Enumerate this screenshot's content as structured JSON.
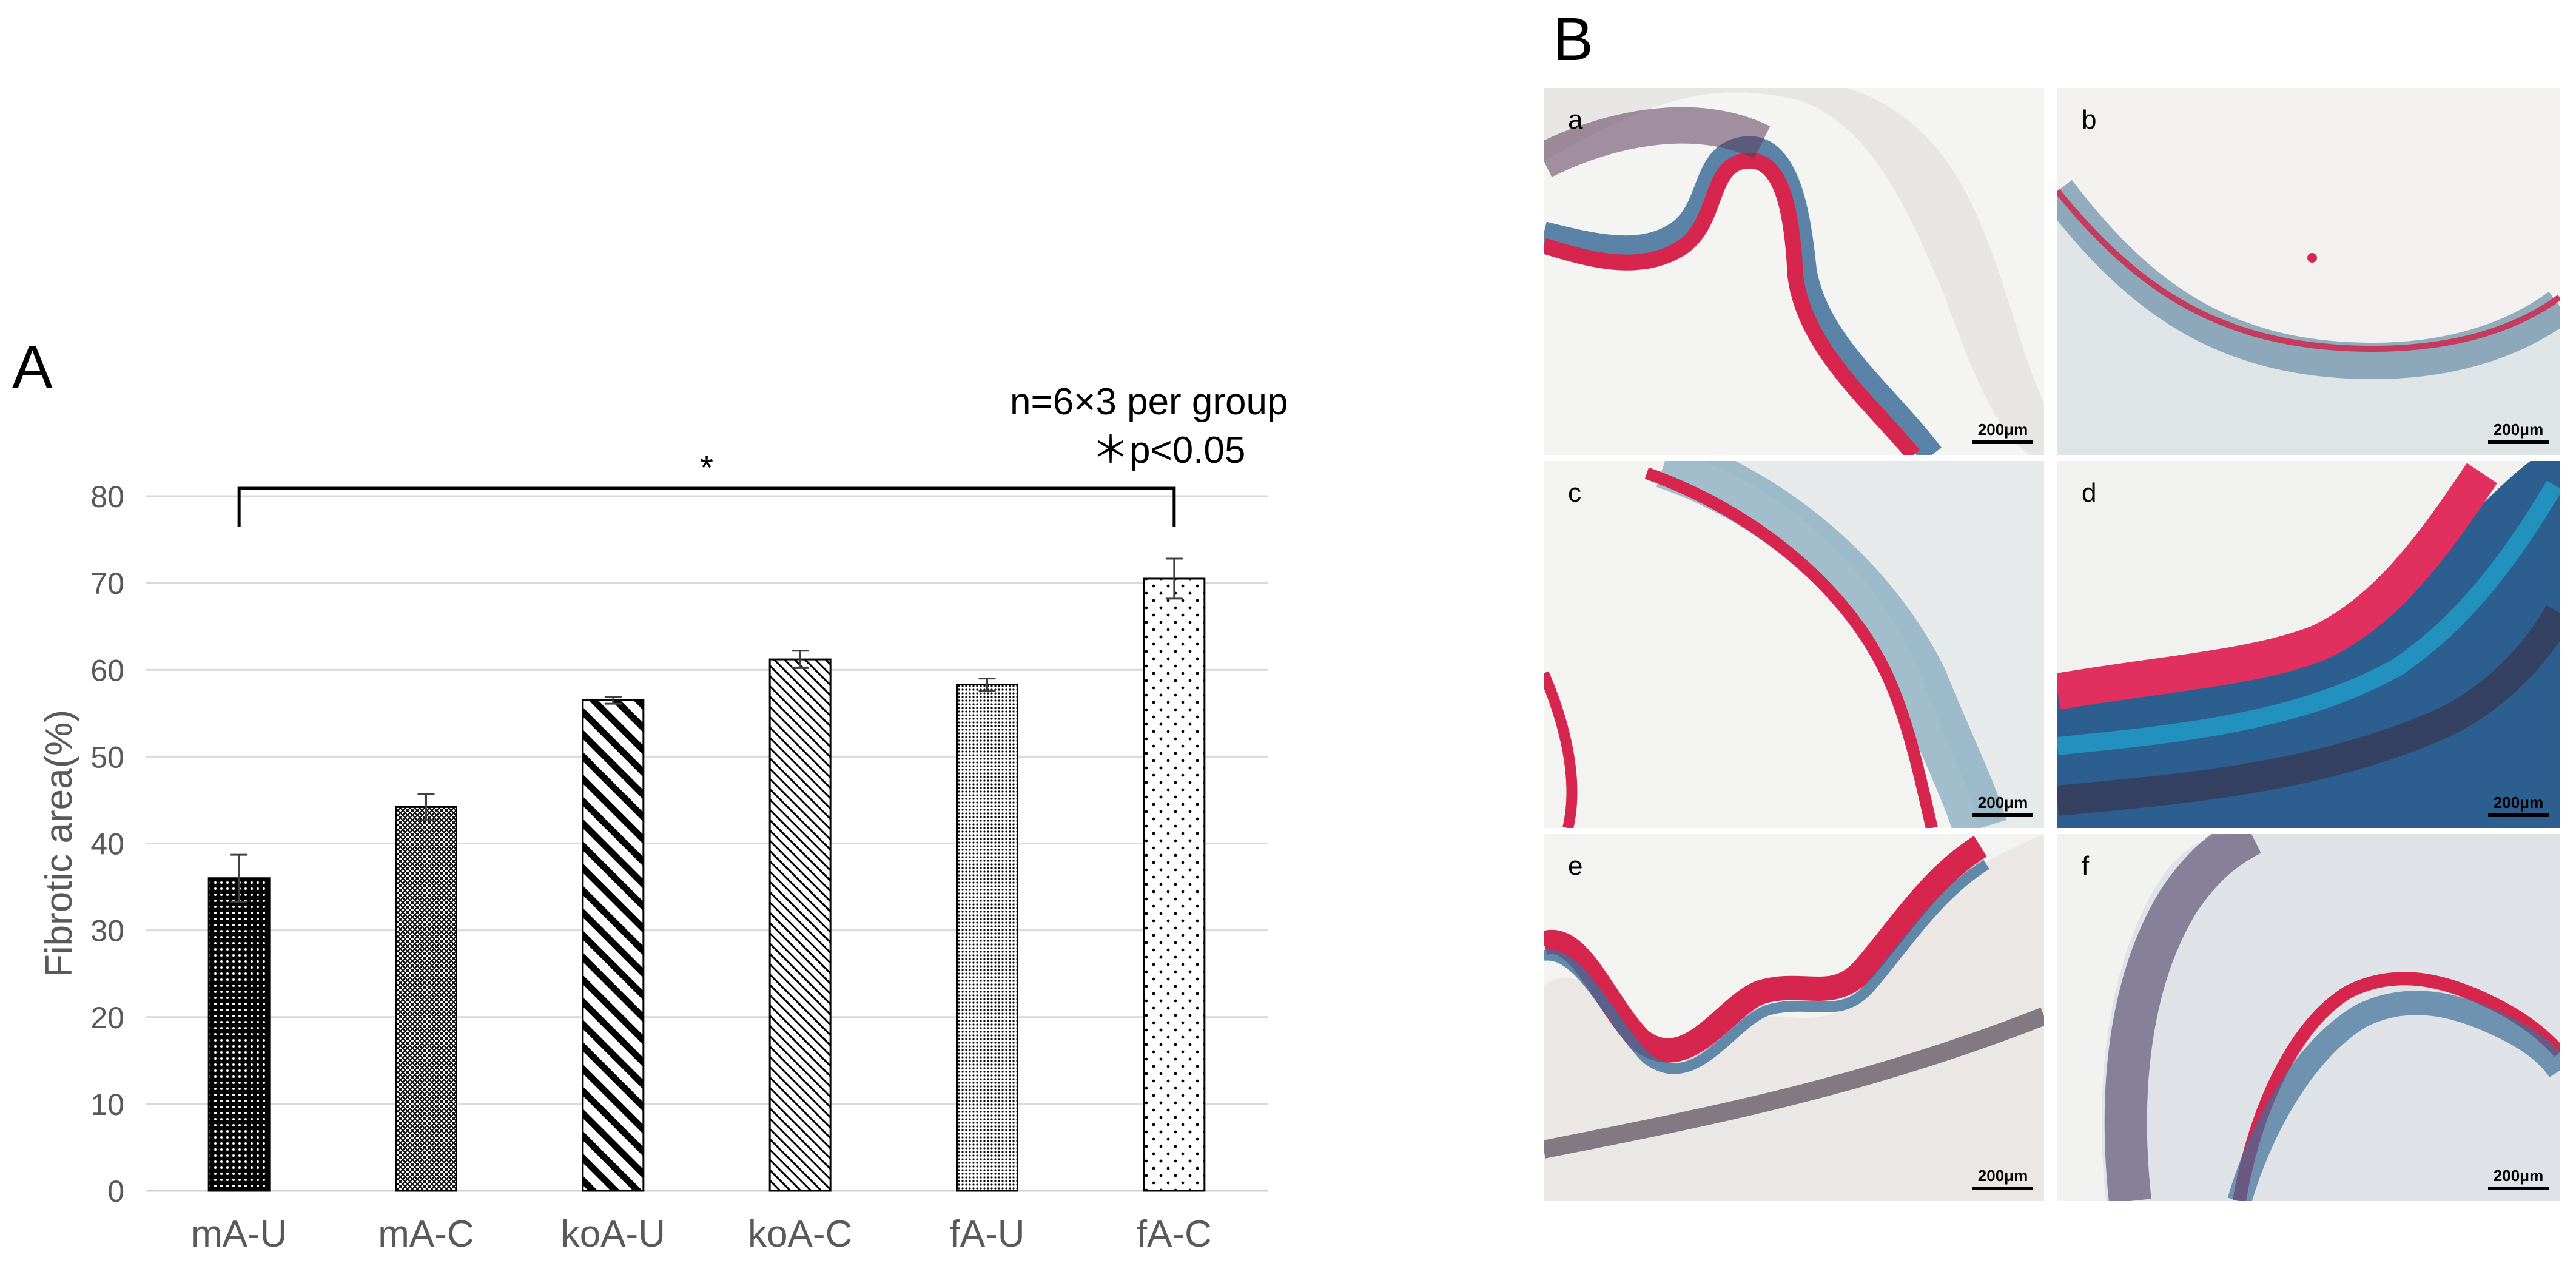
{
  "panels": {
    "a_label": "A",
    "b_label": "B"
  },
  "chart_data": {
    "type": "bar",
    "categories": [
      "mA-U",
      "mA-C",
      "koA-U",
      "koA-C",
      "fA-U",
      "fA-C"
    ],
    "values": [
      36,
      44.2,
      56.5,
      61.2,
      58.3,
      70.5
    ],
    "errors": [
      2.7,
      1.5,
      0.4,
      1.0,
      0.7,
      2.3
    ],
    "patterns": [
      "dense-dots",
      "crosshatch",
      "wide-diagonal",
      "fine-diagonal",
      "fine-dots",
      "sparse-dots"
    ],
    "xlabel": "",
    "ylabel": "Fibrotic area(%)",
    "ylim": [
      0,
      80
    ],
    "yticks": [
      0,
      10,
      20,
      30,
      40,
      50,
      60,
      70,
      80
    ],
    "grid": true,
    "significance": {
      "from": "mA-U",
      "to": "fA-C",
      "label": "*"
    },
    "annotations": [
      "n=6×3 per group",
      "＊p<0.05"
    ]
  },
  "micrographs": [
    {
      "label": "a",
      "scale": "200μm"
    },
    {
      "label": "b",
      "scale": "200μm"
    },
    {
      "label": "c",
      "scale": "200μm"
    },
    {
      "label": "d",
      "scale": "200μm"
    },
    {
      "label": "e",
      "scale": "200μm"
    },
    {
      "label": "f",
      "scale": "200μm"
    }
  ],
  "colors": {
    "stain_red": "#d6264e",
    "stain_blue": "#3f6f9a",
    "tissue_light": "#e8eef2",
    "grid": "#d9d9d9",
    "axis_text": "#595959"
  }
}
